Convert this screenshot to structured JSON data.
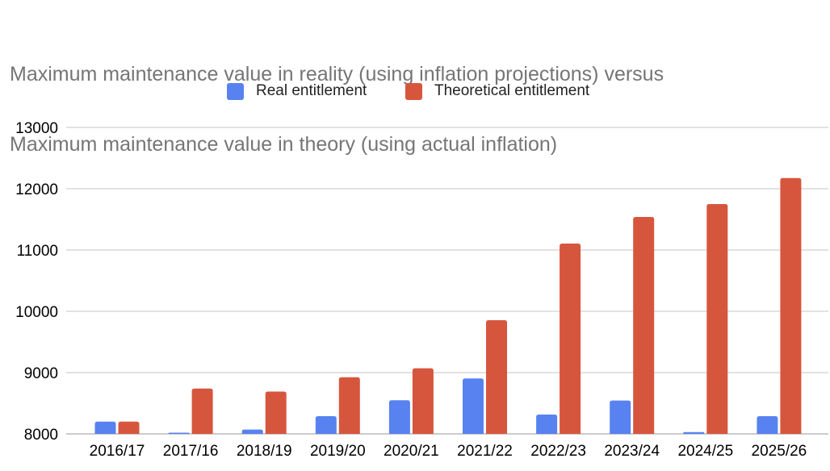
{
  "chart_data": {
    "type": "bar",
    "title_lines": [
      "Maximum maintenance value in reality (using inflation projections) versus",
      "Maximum maintenance value in theory (using actual inflation)"
    ],
    "xlabel": "",
    "ylabel": "",
    "categories": [
      "2016/17",
      "2017/16",
      "2018/19",
      "2019/20",
      "2020/21",
      "2021/22",
      "2022/23",
      "2023/24",
      "2024/25",
      "2025/26"
    ],
    "series": [
      {
        "name": "Real entitlement",
        "color": "#5882f0",
        "values": [
          8200,
          8005,
          8070,
          8290,
          8550,
          8905,
          8315,
          8545,
          8030,
          8290
        ]
      },
      {
        "name": "Theoretical entitlement",
        "color": "#d6563d",
        "values": [
          8200,
          8740,
          8690,
          8925,
          9070,
          9855,
          11105,
          11540,
          11750,
          12175
        ]
      }
    ],
    "ylim": [
      8000,
      13000
    ],
    "yticks": [
      8000,
      9000,
      10000,
      11000,
      12000,
      13000
    ],
    "grid": true,
    "legend_position": "top-center"
  }
}
